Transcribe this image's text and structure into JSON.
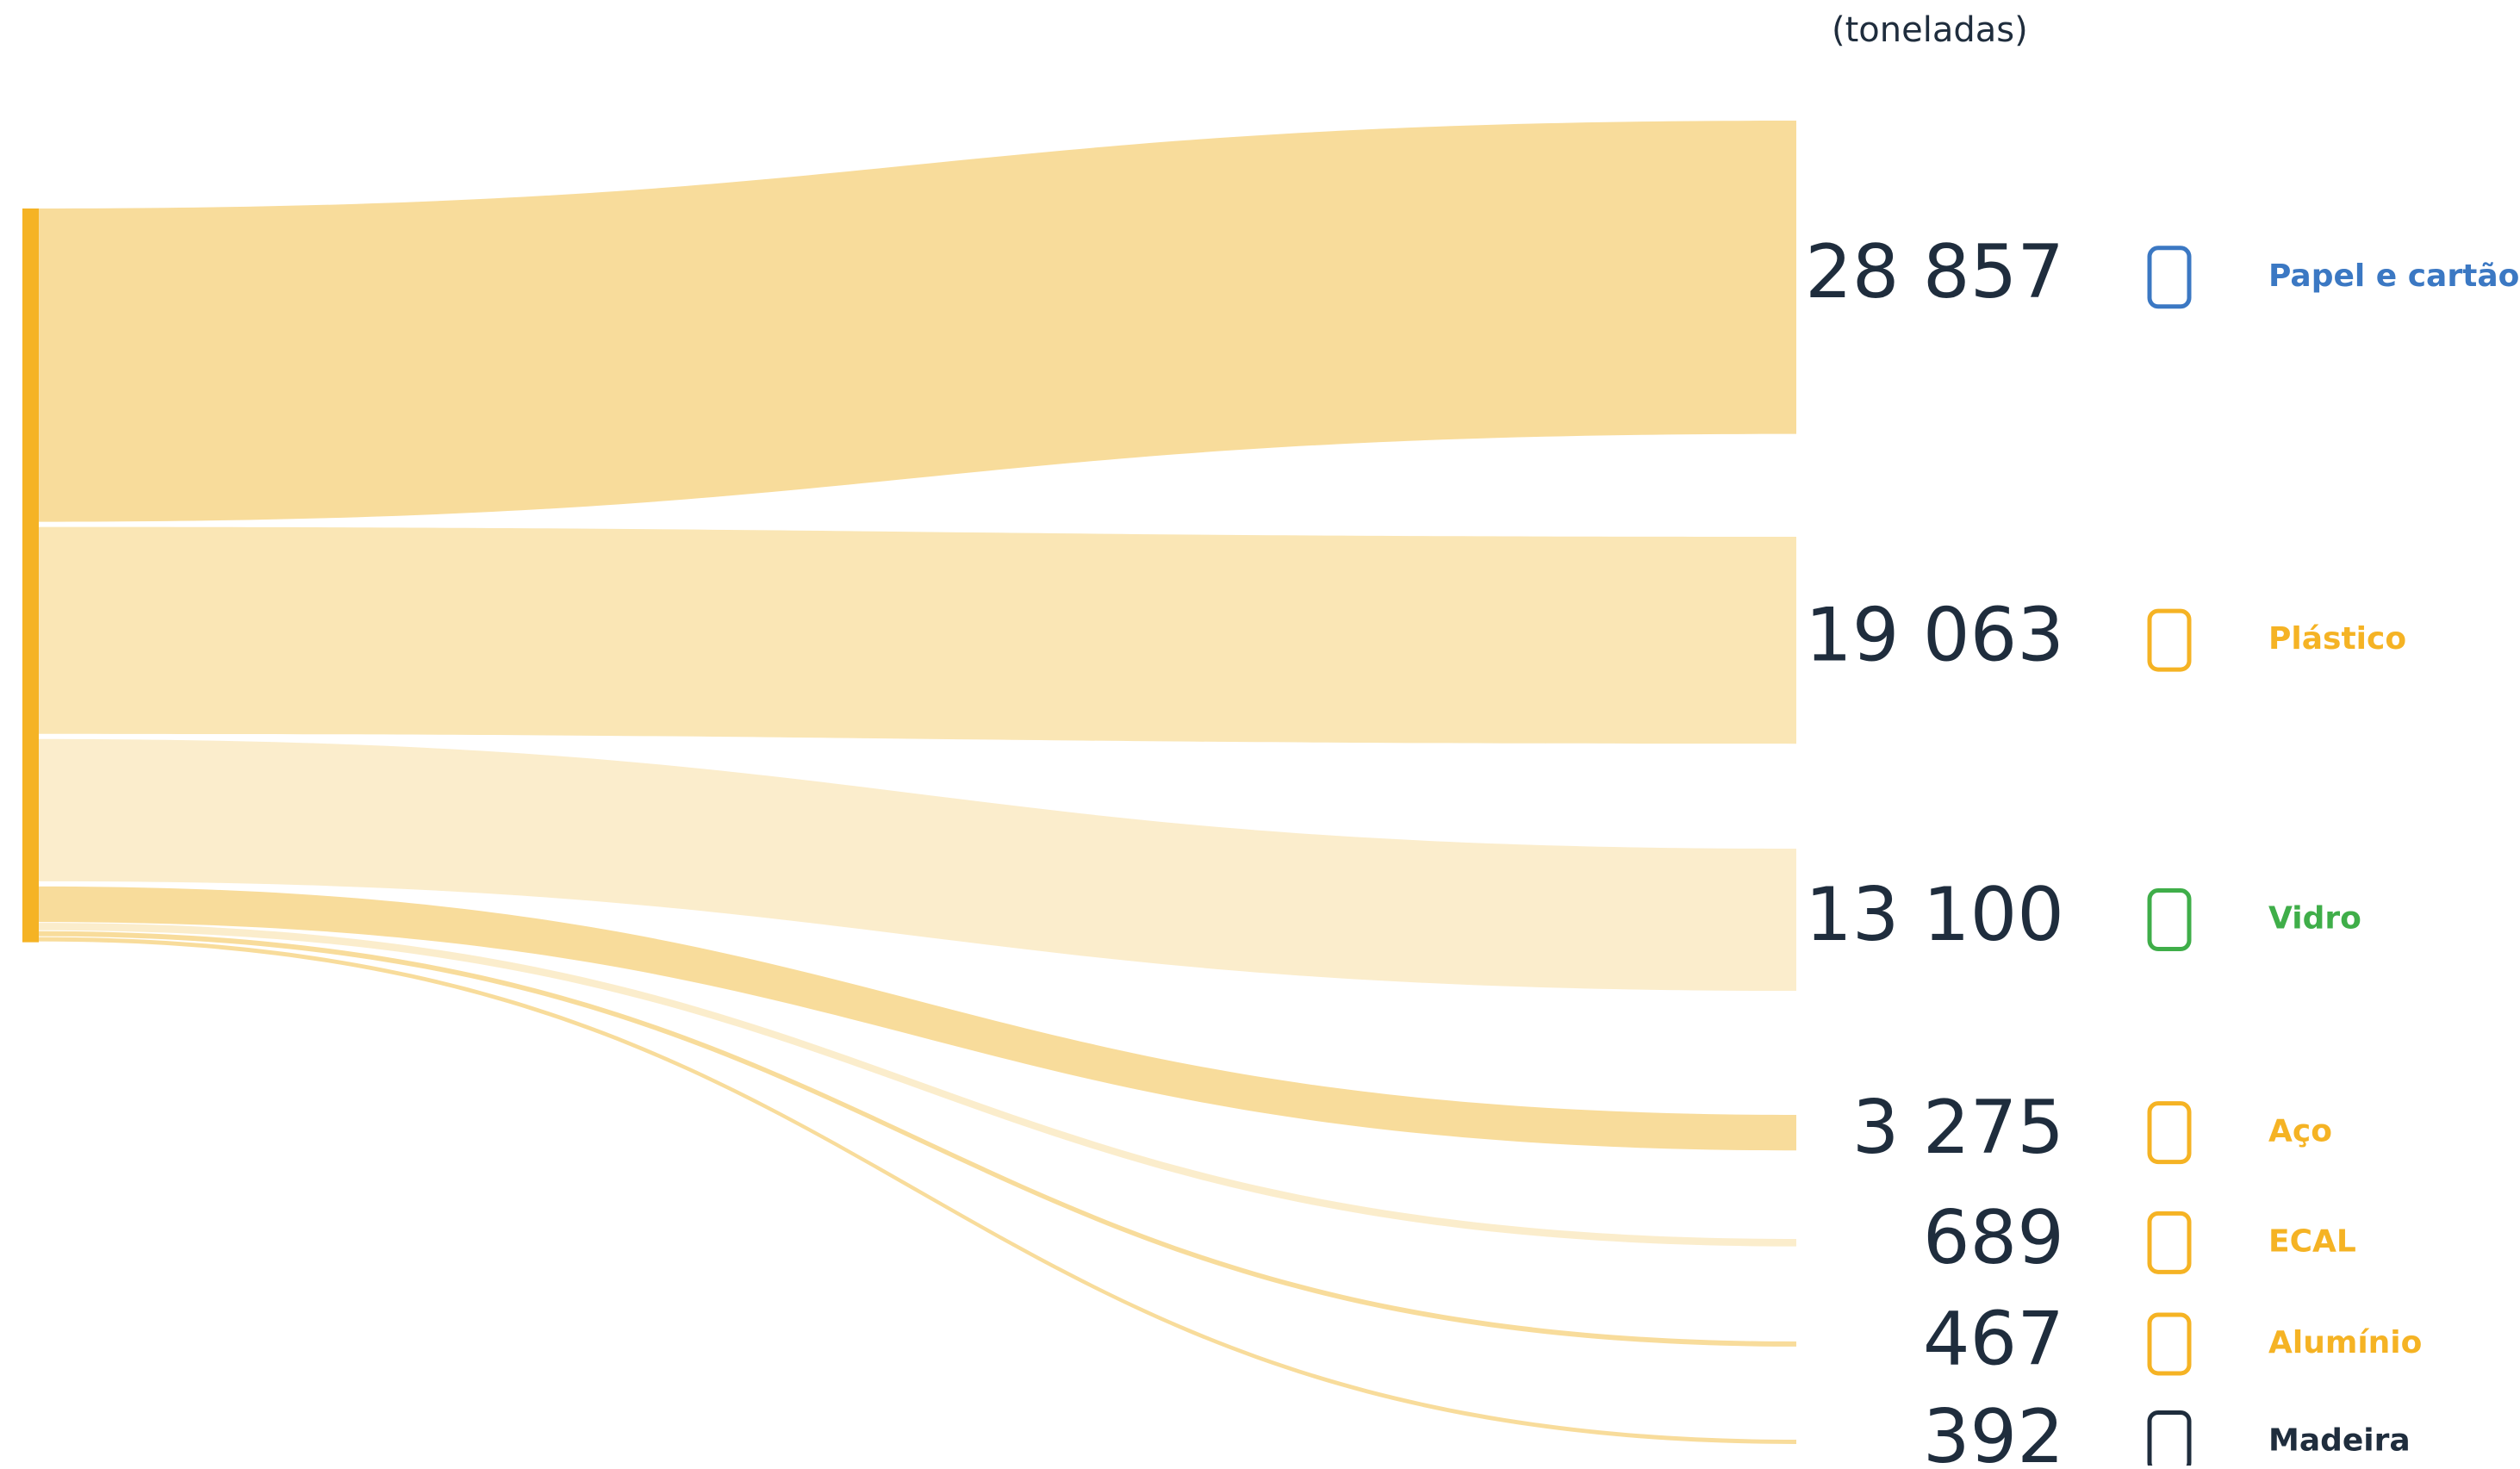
{
  "chart_data": {
    "type": "sankey",
    "unit_label": "(toneladas)",
    "categories": [
      "Papel e cartão",
      "Plástico",
      "Vidro",
      "Aço",
      "ECAL",
      "Alumínio",
      "Madeira"
    ],
    "values": [
      28857,
      19063,
      13100,
      3275,
      689,
      467,
      392
    ],
    "value_labels": [
      "28 857",
      "19 063",
      "13 100",
      "3 275",
      "689",
      "467",
      "392"
    ],
    "label_colors": [
      "#3b78c3",
      "#f5b324",
      "#3fae49",
      "#f5b324",
      "#f5b324",
      "#f5b324",
      "#1f2d3d"
    ],
    "flow_colors": [
      "#f8dc9b",
      "#fae6b5",
      "#fbedcc",
      "#f8dc9b",
      "#fbedcc",
      "#f8dc9b",
      "#f8dc9b"
    ],
    "source_color": "#f5b324"
  }
}
